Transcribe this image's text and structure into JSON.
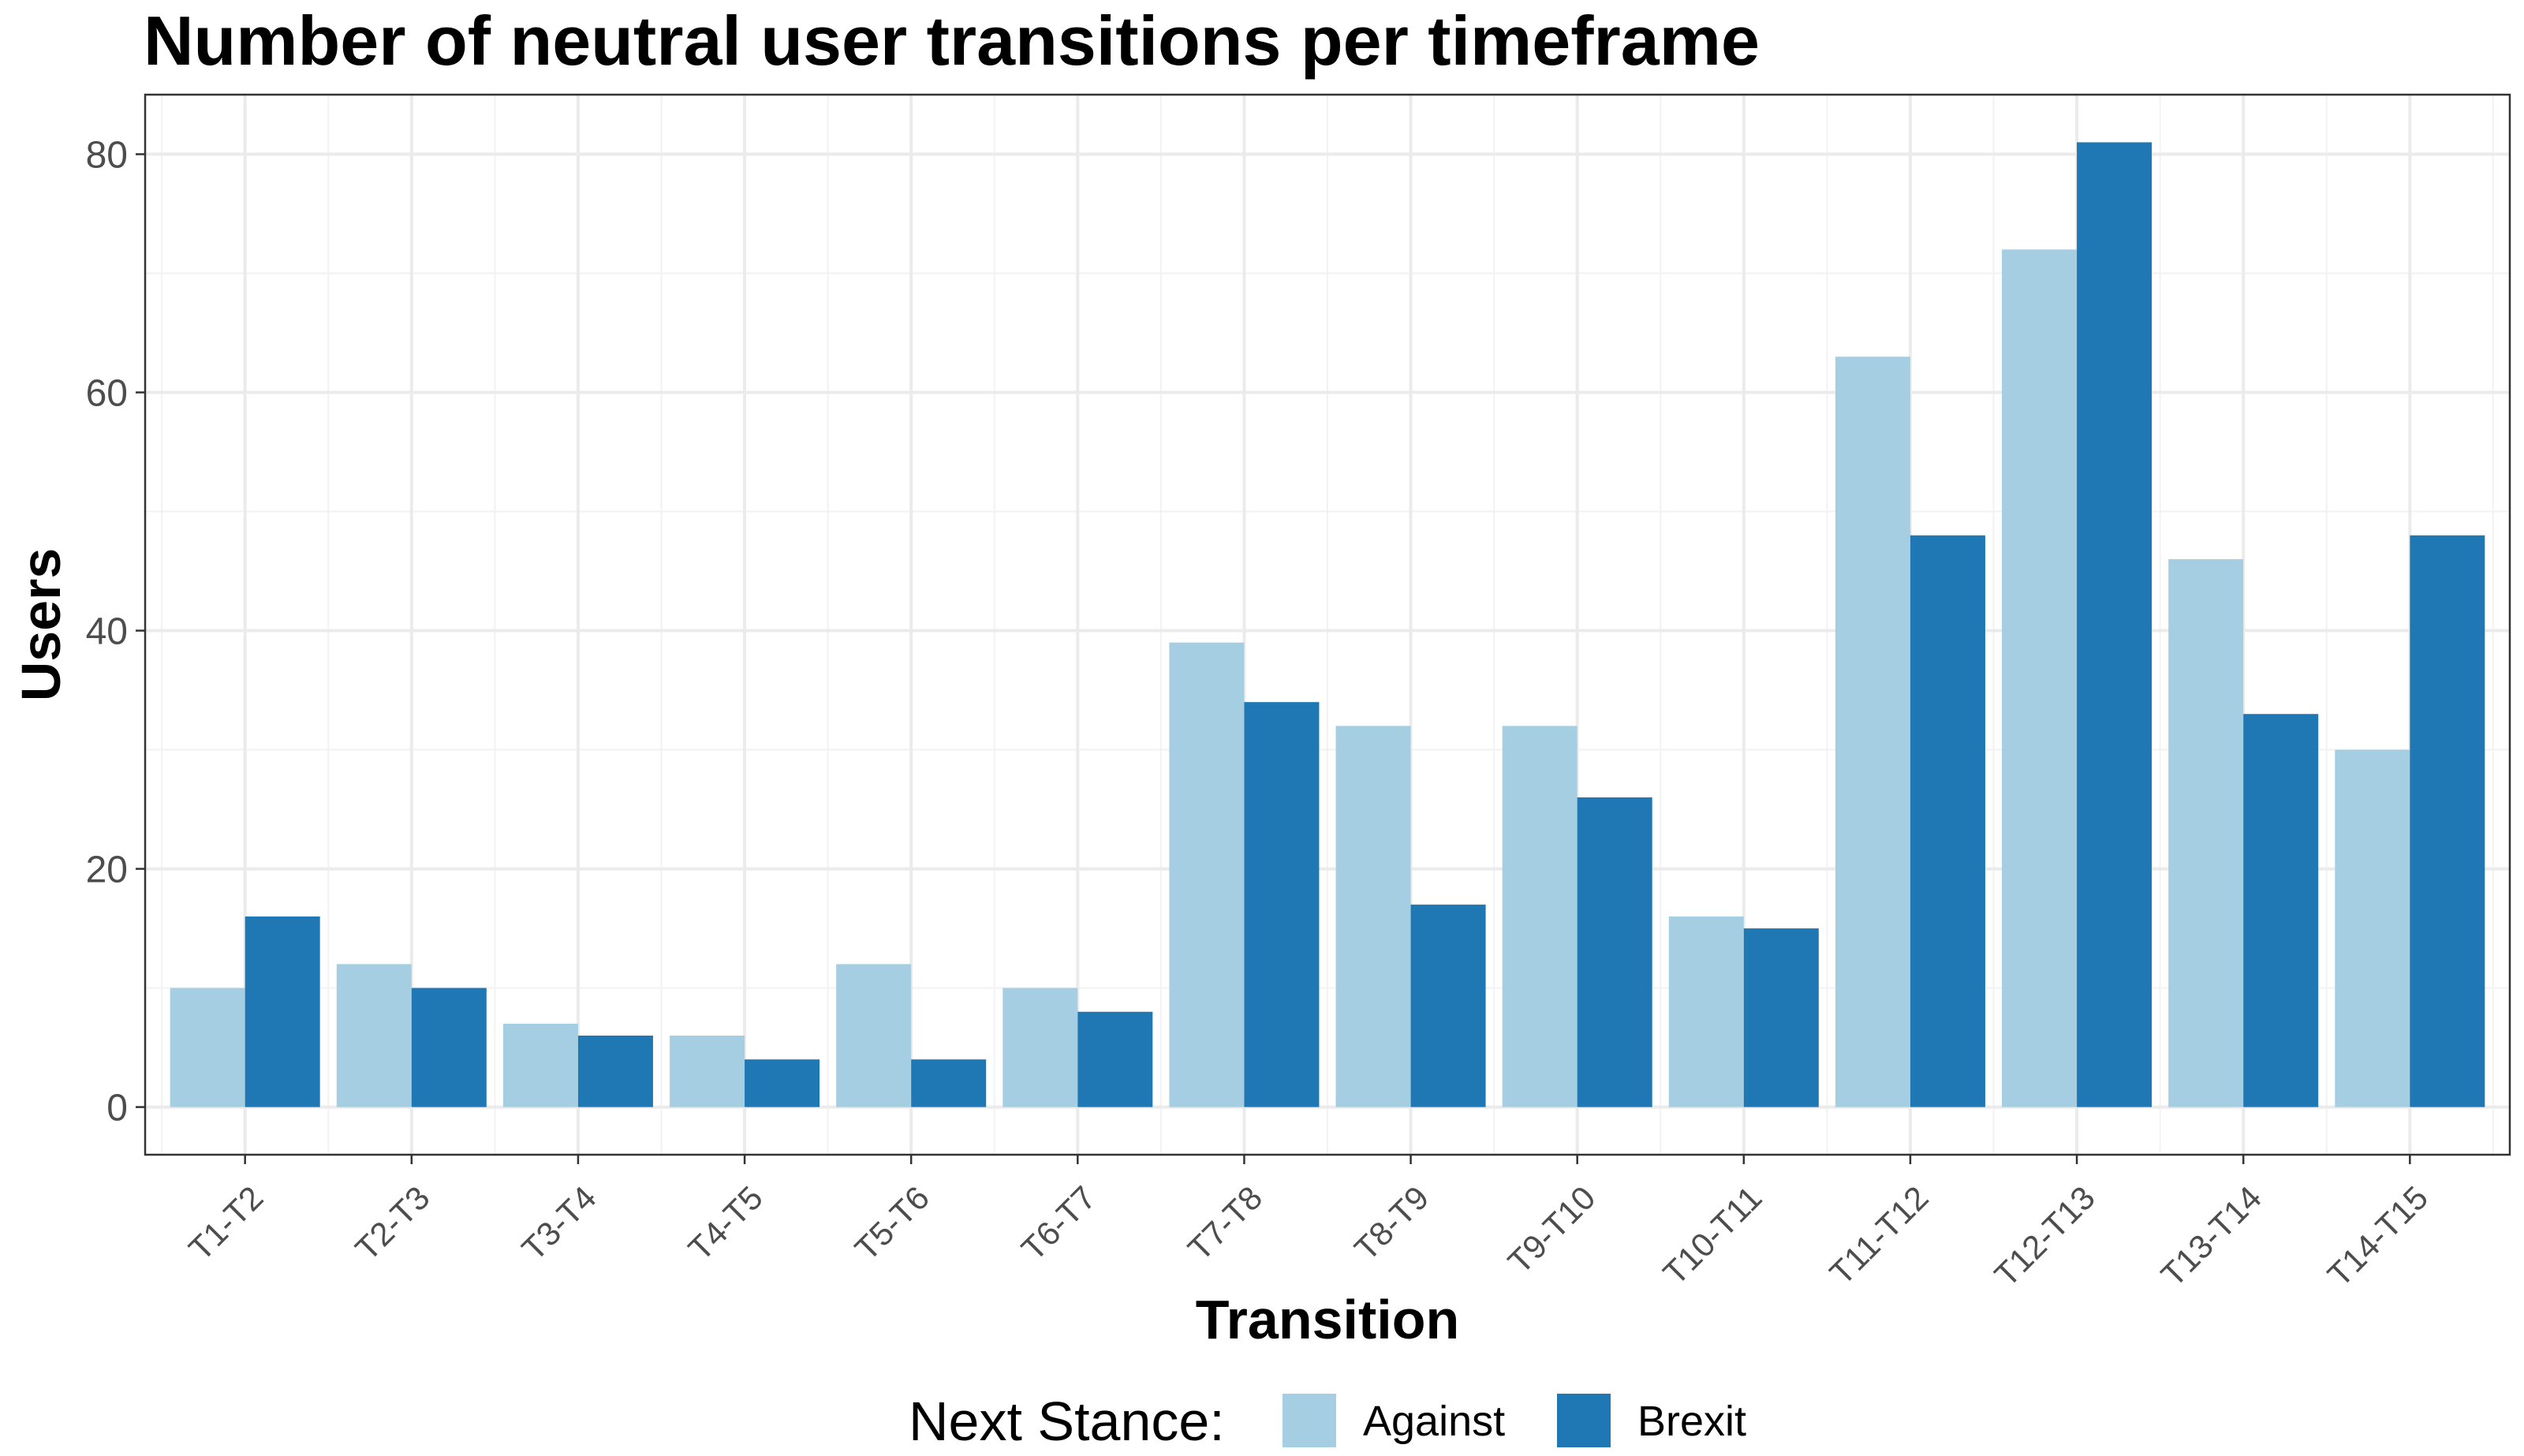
{
  "chart_data": {
    "type": "bar",
    "title": "Number of neutral user transitions per timeframe",
    "xlabel": "Transition",
    "ylabel": "Users",
    "categories": [
      "T1-T2",
      "T2-T3",
      "T3-T4",
      "T4-T5",
      "T5-T6",
      "T6-T7",
      "T7-T8",
      "T8-T9",
      "T9-T10",
      "T10-T11",
      "T11-T12",
      "T12-T13",
      "T13-T14",
      "T14-T15"
    ],
    "series": [
      {
        "name": "Against",
        "color": "#a6cee3",
        "values": [
          10,
          12,
          7,
          6,
          12,
          10,
          39,
          32,
          32,
          16,
          63,
          72,
          46,
          30
        ]
      },
      {
        "name": "Brexit",
        "color": "#1f78b4",
        "values": [
          16,
          10,
          6,
          4,
          4,
          8,
          34,
          17,
          26,
          15,
          48,
          81,
          33,
          48
        ]
      }
    ],
    "ylim": [
      -4,
      85
    ],
    "yticks": [
      0,
      20,
      40,
      60,
      80
    ],
    "grid": true,
    "legend": {
      "title": "Next Stance:",
      "placement": "bottom"
    }
  }
}
